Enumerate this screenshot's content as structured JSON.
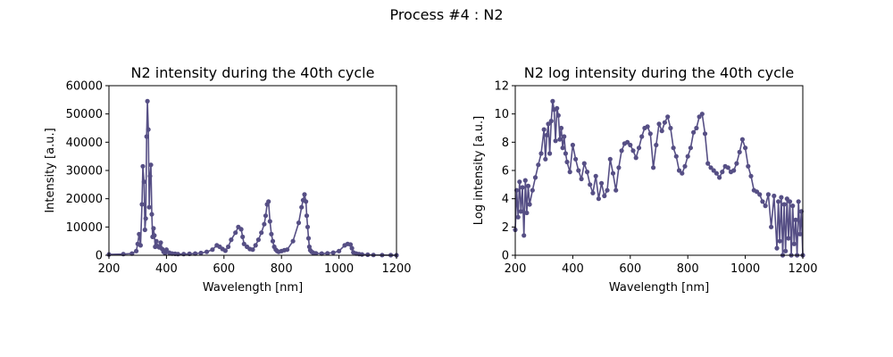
{
  "figure": {
    "suptitle": "Process #4 : N2",
    "color": "#564f85"
  },
  "chart_data": [
    {
      "type": "line",
      "title": "N2 intensity during the 40th cycle",
      "xlabel": "Wavelength [nm]",
      "ylabel": "Intensity [a.u.]",
      "xlim": [
        200,
        1200
      ],
      "ylim": [
        0,
        60000
      ],
      "xticks": [
        200,
        400,
        600,
        800,
        1000,
        1200
      ],
      "yticks": [
        0,
        10000,
        20000,
        30000,
        40000,
        50000,
        60000
      ],
      "grid": false,
      "series": [
        {
          "marker": "circle",
          "x": [
            200,
            250,
            280,
            295,
            300,
            305,
            310,
            315,
            318,
            322,
            325,
            328,
            331,
            334,
            337,
            340,
            343,
            346,
            349,
            352,
            355,
            358,
            361,
            365,
            370,
            375,
            380,
            385,
            390,
            395,
            400,
            410,
            420,
            430,
            440,
            460,
            480,
            500,
            520,
            540,
            560,
            575,
            585,
            595,
            605,
            615,
            625,
            640,
            650,
            660,
            665,
            670,
            680,
            690,
            700,
            710,
            720,
            730,
            740,
            745,
            750,
            755,
            760,
            765,
            770,
            775,
            780,
            785,
            790,
            800,
            810,
            820,
            840,
            860,
            870,
            875,
            880,
            885,
            888,
            891,
            894,
            897,
            900,
            905,
            910,
            920,
            940,
            960,
            980,
            1000,
            1020,
            1030,
            1040,
            1045,
            1050,
            1060,
            1070,
            1080,
            1100,
            1120,
            1150,
            1180,
            1200
          ],
          "y": [
            300,
            400,
            600,
            1500,
            4000,
            7500,
            3500,
            18000,
            31500,
            26000,
            9000,
            13000,
            42000,
            54500,
            44500,
            17000,
            28000,
            32000,
            14500,
            6500,
            9500,
            7000,
            3000,
            5000,
            3200,
            2800,
            4500,
            2200,
            1200,
            800,
            2000,
            900,
            600,
            500,
            400,
            400,
            500,
            600,
            800,
            1200,
            2000,
            3500,
            3000,
            2200,
            1600,
            3000,
            5500,
            8000,
            10000,
            9200,
            6500,
            4000,
            3000,
            2200,
            2000,
            3500,
            5500,
            8000,
            11000,
            14000,
            18000,
            19000,
            12000,
            7500,
            5000,
            3000,
            2000,
            1500,
            1200,
            1500,
            1800,
            2000,
            5000,
            11500,
            17000,
            19500,
            21500,
            19000,
            14000,
            10000,
            6000,
            3000,
            1800,
            1200,
            900,
            700,
            600,
            700,
            900,
            1500,
            3500,
            4000,
            3800,
            2500,
            1000,
            600,
            400,
            300,
            200,
            100,
            50,
            20,
            10
          ]
        }
      ]
    },
    {
      "type": "line",
      "title": "N2 log intensity during the 40th cycle",
      "xlabel": "Wavelength [nm]",
      "ylabel": "Log intensity [a.u.]",
      "xlim": [
        200,
        1200
      ],
      "ylim": [
        0,
        12
      ],
      "xticks": [
        200,
        400,
        600,
        800,
        1000,
        1200
      ],
      "yticks": [
        0,
        2,
        4,
        6,
        8,
        10,
        12
      ],
      "grid": false,
      "series": [
        {
          "marker": "circle",
          "x": [
            200,
            205,
            210,
            215,
            220,
            225,
            230,
            235,
            240,
            245,
            250,
            260,
            270,
            280,
            290,
            300,
            305,
            310,
            315,
            320,
            325,
            330,
            335,
            340,
            345,
            350,
            355,
            360,
            365,
            370,
            375,
            380,
            390,
            400,
            410,
            420,
            430,
            440,
            450,
            460,
            470,
            480,
            490,
            500,
            510,
            520,
            530,
            540,
            550,
            560,
            570,
            580,
            590,
            600,
            610,
            620,
            630,
            640,
            650,
            660,
            670,
            680,
            690,
            700,
            710,
            720,
            730,
            740,
            750,
            760,
            770,
            780,
            790,
            800,
            810,
            820,
            830,
            840,
            850,
            860,
            870,
            880,
            890,
            900,
            910,
            920,
            930,
            940,
            950,
            960,
            970,
            980,
            990,
            1000,
            1010,
            1020,
            1030,
            1040,
            1050,
            1060,
            1070,
            1080,
            1090,
            1100,
            1110,
            1115,
            1120,
            1125,
            1130,
            1135,
            1140,
            1145,
            1150,
            1155,
            1160,
            1165,
            1170,
            1175,
            1180,
            1185,
            1190,
            1195,
            1200
          ],
          "y": [
            1.8,
            4.6,
            2.7,
            5.2,
            3.1,
            4.8,
            1.4,
            5.3,
            3.0,
            4.9,
            3.6,
            4.6,
            5.5,
            6.4,
            7.2,
            8.9,
            6.8,
            8.5,
            9.3,
            7.2,
            9.5,
            10.9,
            10.3,
            8.1,
            10.4,
            9.9,
            8.2,
            9.0,
            7.6,
            8.4,
            7.2,
            6.6,
            5.9,
            7.8,
            6.8,
            6.0,
            5.4,
            6.5,
            5.9,
            5.0,
            4.4,
            5.6,
            4.0,
            5.1,
            4.2,
            4.6,
            6.8,
            5.8,
            4.6,
            6.2,
            7.4,
            7.9,
            8.0,
            7.8,
            7.4,
            6.9,
            7.6,
            8.4,
            9.0,
            9.1,
            8.6,
            6.2,
            7.8,
            9.3,
            8.8,
            9.4,
            9.8,
            9.0,
            7.6,
            7.0,
            6.0,
            5.8,
            6.3,
            7.0,
            7.6,
            8.7,
            9.0,
            9.8,
            10.0,
            8.6,
            6.5,
            6.2,
            6.0,
            5.8,
            5.5,
            5.9,
            6.3,
            6.2,
            5.9,
            6.0,
            6.5,
            7.3,
            8.2,
            7.6,
            6.3,
            5.6,
            4.6,
            4.5,
            4.3,
            3.8,
            3.5,
            4.3,
            2.0,
            4.2,
            0.5,
            3.8,
            1.0,
            4.1,
            0.0,
            3.6,
            0.3,
            4.0,
            1.2,
            3.8,
            0.0,
            3.5,
            0.8,
            2.5,
            0.0,
            3.8,
            1.5,
            3.1,
            0.0
          ]
        }
      ]
    }
  ]
}
